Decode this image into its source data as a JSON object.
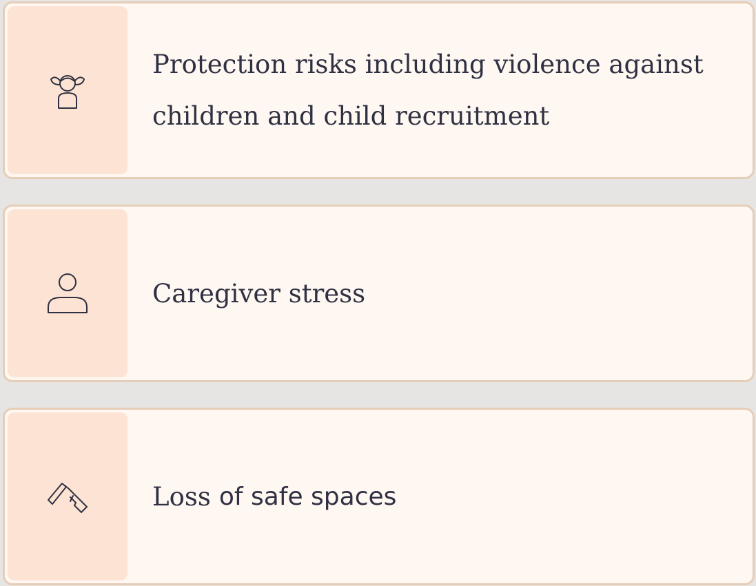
{
  "items": [
    {
      "text": "Protection risks including violence against children and child recruitment"
    },
    {
      "text": "Caregiver stress"
    },
    {
      "text_parts": [
        "Loss",
        "of safe spaces"
      ]
    }
  ]
}
